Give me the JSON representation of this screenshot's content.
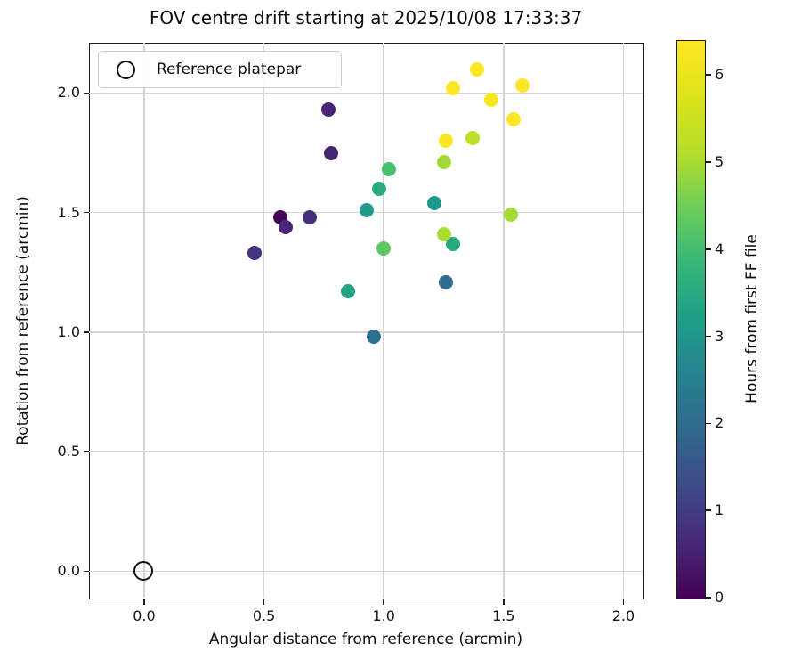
{
  "figure": {
    "title": "FOV centre drift starting at 2025/10/08 17:33:37"
  },
  "chart_data": {
    "type": "scatter",
    "title": "FOV centre drift starting at 2025/10/08 17:33:37",
    "xlabel": "Angular distance from reference (arcmin)",
    "ylabel": "Rotation from reference (arcmin)",
    "xlim": [
      -0.23,
      2.08
    ],
    "ylim": [
      -0.11,
      2.21
    ],
    "xticks": [
      0.0,
      0.5,
      1.0,
      1.5,
      2.0
    ],
    "yticks": [
      0.0,
      0.5,
      1.0,
      1.5,
      2.0
    ],
    "xtick_labels": [
      "0.0",
      "0.5",
      "1.0",
      "1.5",
      "2.0"
    ],
    "ytick_labels": [
      "0.0",
      "0.5",
      "1.0",
      "1.5",
      "2.0"
    ],
    "grid": true,
    "grid_color": "#d4d4d4",
    "legend": {
      "label": "Reference platepar",
      "position": "upper left",
      "marker": "open-circle"
    },
    "reference_point": {
      "x": 0.0,
      "y": 0.0,
      "label": "Reference platepar"
    },
    "series": [
      {
        "name": "FOV centre positions coloured by time",
        "colormap": "viridis",
        "color_value_label": "Hours from first FF file",
        "points": [
          {
            "x": 0.57,
            "y": 1.48,
            "hours": 0.1,
            "color": "#45065a"
          },
          {
            "x": 0.77,
            "y": 1.93,
            "hours": 0.6,
            "color": "#472475"
          },
          {
            "x": 0.78,
            "y": 1.75,
            "hours": 0.6,
            "color": "#472575"
          },
          {
            "x": 0.59,
            "y": 1.44,
            "hours": 0.7,
            "color": "#482878"
          },
          {
            "x": 0.69,
            "y": 1.48,
            "hours": 0.8,
            "color": "#472d7b"
          },
          {
            "x": 0.46,
            "y": 1.33,
            "hours": 1.0,
            "color": "#46327e"
          },
          {
            "x": 1.26,
            "y": 1.21,
            "hours": 2.7,
            "color": "#2e6d8e"
          },
          {
            "x": 0.96,
            "y": 0.98,
            "hours": 2.9,
            "color": "#2c708e"
          },
          {
            "x": 0.93,
            "y": 1.51,
            "hours": 3.7,
            "color": "#219a8a"
          },
          {
            "x": 1.21,
            "y": 1.54,
            "hours": 3.8,
            "color": "#1f988b"
          },
          {
            "x": 0.85,
            "y": 1.17,
            "hours": 4.0,
            "color": "#22a384"
          },
          {
            "x": 0.98,
            "y": 1.6,
            "hours": 4.2,
            "color": "#27ad81"
          },
          {
            "x": 1.29,
            "y": 1.37,
            "hours": 4.3,
            "color": "#26ab80"
          },
          {
            "x": 1.02,
            "y": 1.68,
            "hours": 4.7,
            "color": "#48c16e"
          },
          {
            "x": 1.0,
            "y": 1.35,
            "hours": 5.0,
            "color": "#5ec962"
          },
          {
            "x": 1.25,
            "y": 1.71,
            "hours": 5.5,
            "color": "#a2da37"
          },
          {
            "x": 1.53,
            "y": 1.49,
            "hours": 5.5,
            "color": "#a5db36"
          },
          {
            "x": 1.25,
            "y": 1.41,
            "hours": 5.6,
            "color": "#aadc32"
          },
          {
            "x": 1.37,
            "y": 1.81,
            "hours": 5.8,
            "color": "#bcdf27"
          },
          {
            "x": 1.26,
            "y": 1.8,
            "hours": 6.2,
            "color": "#fae622"
          },
          {
            "x": 1.29,
            "y": 2.02,
            "hours": 6.2,
            "color": "#fbe723"
          },
          {
            "x": 1.45,
            "y": 1.97,
            "hours": 6.2,
            "color": "#f8e621"
          },
          {
            "x": 1.39,
            "y": 2.1,
            "hours": 6.3,
            "color": "#fde725"
          },
          {
            "x": 1.54,
            "y": 1.89,
            "hours": 6.3,
            "color": "#fde725"
          },
          {
            "x": 1.58,
            "y": 2.03,
            "hours": 6.4,
            "color": "#fde725"
          }
        ]
      }
    ],
    "colorbar": {
      "label": "Hours from first FF file",
      "vmin": 0,
      "vmax": 6.4,
      "ticks": [
        0,
        1,
        2,
        3,
        4,
        5,
        6
      ],
      "tick_labels": [
        "0",
        "1",
        "2",
        "3",
        "4",
        "5",
        "6"
      ],
      "colormap": "viridis",
      "gradient_stops": [
        {
          "at": 0.0,
          "color": "#440154"
        },
        {
          "at": 0.1,
          "color": "#482878"
        },
        {
          "at": 0.2,
          "color": "#3e4a89"
        },
        {
          "at": 0.3,
          "color": "#31688e"
        },
        {
          "at": 0.4,
          "color": "#26828e"
        },
        {
          "at": 0.5,
          "color": "#1f9e89"
        },
        {
          "at": 0.6,
          "color": "#35b779"
        },
        {
          "at": 0.7,
          "color": "#6dcd59"
        },
        {
          "at": 0.8,
          "color": "#b5de2b"
        },
        {
          "at": 0.9,
          "color": "#dce319"
        },
        {
          "at": 1.0,
          "color": "#fde725"
        }
      ]
    }
  }
}
